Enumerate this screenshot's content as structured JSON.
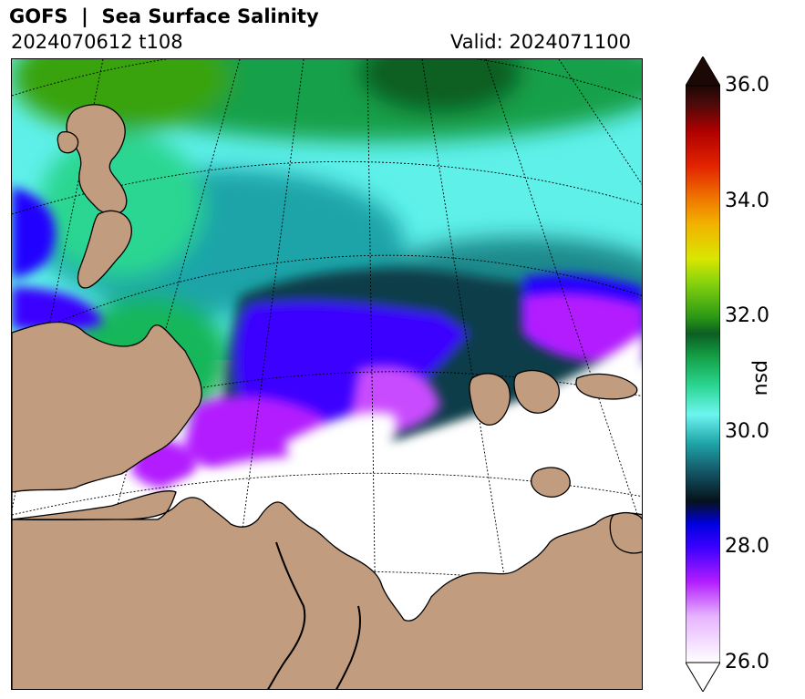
{
  "header": {
    "title": "GOFS  |  Sea Surface Salinity",
    "run": "2024070612 t108",
    "valid": "Valid: 2024071100"
  },
  "colors": {
    "land": "#c19c7e",
    "coastline": "#000000",
    "fresh_low": "#ffffff",
    "purple": "#b21dff",
    "blue": "#2400ff",
    "dark_teal": "#0a3c4a",
    "teal": "#1e8a8c",
    "cyan": "#5cf2ee",
    "green": "#19b65a",
    "dark_green": "#0d6b2e",
    "olive": "#38a30d"
  },
  "colorbar": {
    "unit": "psu",
    "min": 26.0,
    "max": 36.0,
    "extend": "both",
    "ticks": [
      "26.0",
      "28.0",
      "30.0",
      "32.0",
      "34.0",
      "36.0"
    ],
    "stops": [
      {
        "value": 26.0,
        "color": "#ffffff"
      },
      {
        "value": 26.8,
        "color": "#e6b3ff"
      },
      {
        "value": 27.4,
        "color": "#b21dff"
      },
      {
        "value": 28.0,
        "color": "#3b00ff"
      },
      {
        "value": 28.4,
        "color": "#0000e0"
      },
      {
        "value": 28.8,
        "color": "#06121a"
      },
      {
        "value": 29.3,
        "color": "#135565"
      },
      {
        "value": 29.8,
        "color": "#1fa4a8"
      },
      {
        "value": 30.3,
        "color": "#6df5f0"
      },
      {
        "value": 30.8,
        "color": "#2bd691"
      },
      {
        "value": 31.3,
        "color": "#14a046"
      },
      {
        "value": 31.7,
        "color": "#0b5e22"
      },
      {
        "value": 32.0,
        "color": "#2c9a14"
      },
      {
        "value": 32.6,
        "color": "#8ad40d"
      },
      {
        "value": 33.0,
        "color": "#d9e600"
      },
      {
        "value": 33.6,
        "color": "#f2b200"
      },
      {
        "value": 34.0,
        "color": "#f07d00"
      },
      {
        "value": 34.6,
        "color": "#e32400"
      },
      {
        "value": 35.2,
        "color": "#b00000"
      },
      {
        "value": 35.7,
        "color": "#4a0a0a"
      },
      {
        "value": 36.0,
        "color": "#1c0804"
      }
    ]
  }
}
